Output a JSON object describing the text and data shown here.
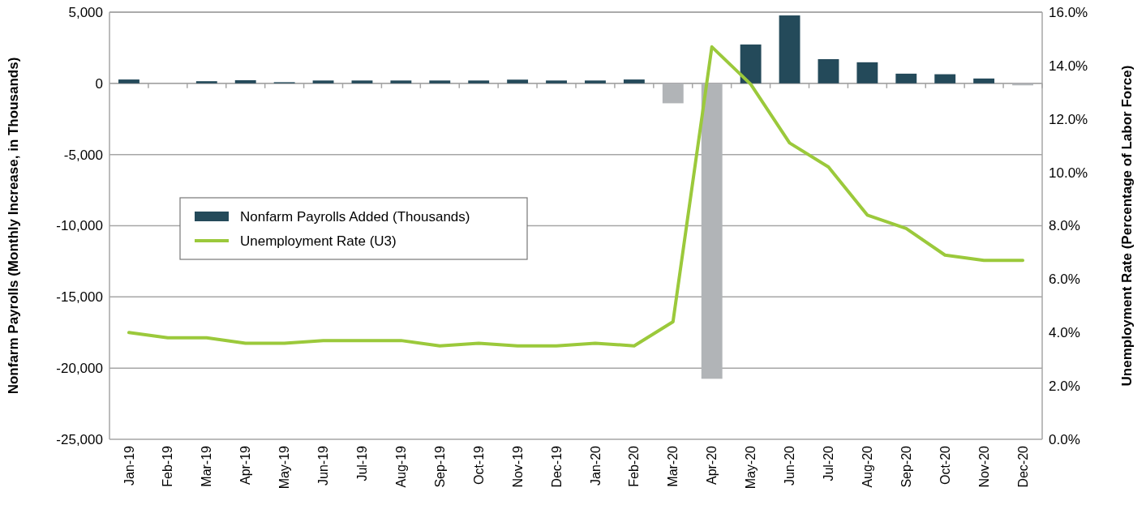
{
  "chart_data": {
    "type": "bar",
    "ylabel": "Nonfarm Payrolls (Monthly Increase, in Thousands)",
    "y2label": "Unemployment Rate (Percentage of Labor Force)",
    "categories": [
      "Jan-19",
      "Feb-19",
      "Mar-19",
      "Apr-19",
      "May-19",
      "Jun-19",
      "Jul-19",
      "Aug-19",
      "Sep-19",
      "Oct-19",
      "Nov-19",
      "Dec-19",
      "Jan-20",
      "Feb-20",
      "Mar-20",
      "Apr-20",
      "May-20",
      "Jun-20",
      "Jul-20",
      "Aug-20",
      "Sep-20",
      "Oct-20",
      "Nov-20",
      "Dec-20"
    ],
    "series": [
      {
        "name": "Nonfarm Payrolls Added (Thousands)",
        "color": "#244a5a",
        "colors": [
          "#244a5a",
          "#244a5a",
          "#244a5a",
          "#244a5a",
          "#244a5a",
          "#244a5a",
          "#244a5a",
          "#244a5a",
          "#244a5a",
          "#244a5a",
          "#244a5a",
          "#244a5a",
          "#244a5a",
          "#244a5a",
          "#b1b4b7",
          "#b1b4b7",
          "#244a5a",
          "#244a5a",
          "#244a5a",
          "#244a5a",
          "#244a5a",
          "#244a5a",
          "#244a5a",
          "#b1b4b7"
        ],
        "values": [
          270,
          0,
          150,
          220,
          80,
          200,
          200,
          200,
          200,
          200,
          260,
          200,
          200,
          270,
          -1400,
          -20750,
          2730,
          4770,
          1700,
          1480,
          680,
          640,
          340,
          -140
        ]
      },
      {
        "name": "Unemployment Rate (U3)",
        "type": "line",
        "axis": "y2",
        "color": "#9bc93b",
        "values": [
          4.0,
          3.8,
          3.8,
          3.6,
          3.6,
          3.7,
          3.7,
          3.7,
          3.5,
          3.6,
          3.5,
          3.5,
          3.6,
          3.5,
          4.4,
          14.7,
          13.3,
          11.1,
          10.2,
          8.4,
          7.9,
          6.9,
          6.7,
          6.7
        ]
      }
    ],
    "ylim": [
      -25000,
      5000
    ],
    "yticks": [
      {
        "value": -25000,
        "label": "-25,000"
      },
      {
        "value": -20000,
        "label": "-20,000"
      },
      {
        "value": -15000,
        "label": "-15,000"
      },
      {
        "value": -10000,
        "label": "-10,000"
      },
      {
        "value": -5000,
        "label": "-5,000"
      },
      0,
      {
        "value": 5000,
        "label": "5,000"
      }
    ],
    "y2lim": [
      0,
      16
    ],
    "y2ticks": [
      {
        "value": 0,
        "label": "0.0%"
      },
      {
        "value": 2,
        "label": "2.0%"
      },
      {
        "value": 4,
        "label": "4.0%"
      },
      {
        "value": 6,
        "label": "6.0%"
      },
      {
        "value": 8,
        "label": "8.0%"
      },
      {
        "value": 10,
        "label": "10.0%"
      },
      {
        "value": 12,
        "label": "12.0%"
      },
      {
        "value": 14,
        "label": "14.0%"
      },
      {
        "value": 16,
        "label": "16.0%"
      }
    ],
    "grid": "y",
    "legend": "left",
    "marker": "none",
    "line_style": "solid"
  }
}
